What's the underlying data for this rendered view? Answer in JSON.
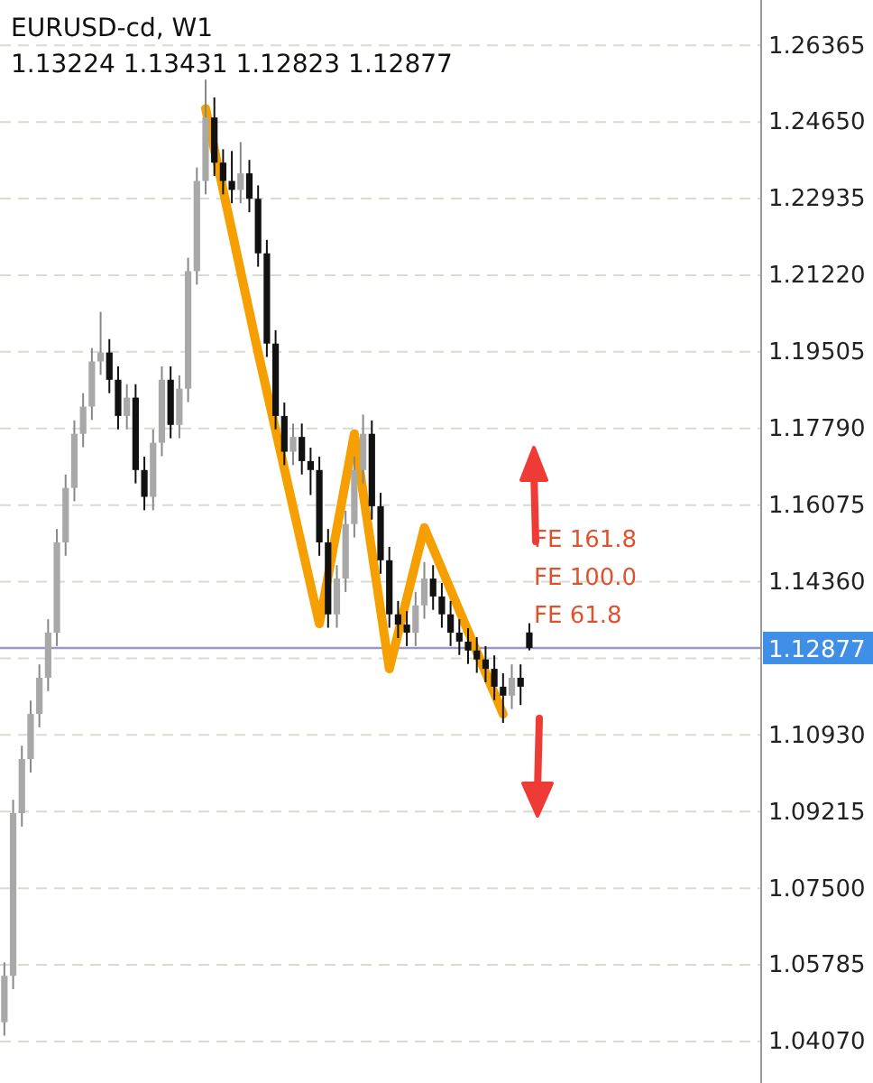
{
  "chart_data": {
    "type": "candlestick",
    "title": "EURUSD-cd, W1",
    "subtitle": "1.13224 1.13431 1.12823 1.12877",
    "categories": [
      null,
      null,
      null,
      null,
      null,
      null,
      null,
      null,
      null,
      null,
      null,
      null,
      null,
      null,
      null,
      null,
      null,
      null,
      null,
      null,
      null,
      null,
      null,
      null,
      null,
      null,
      null,
      null,
      null,
      null,
      null,
      null,
      null,
      null,
      null,
      null,
      null,
      null,
      null,
      null,
      null,
      null,
      null,
      null,
      null,
      null,
      null,
      null,
      null,
      null,
      null,
      null,
      null,
      null,
      null,
      null,
      null,
      null,
      null,
      null,
      null,
      null,
      null,
      null,
      null,
      null,
      null,
      null,
      null,
      null,
      null,
      null,
      null,
      null,
      null,
      null,
      null,
      null,
      null,
      null,
      null,
      null,
      null,
      null,
      null,
      null,
      null
    ],
    "ohlc": [
      [
        1.045,
        1.0584,
        1.042,
        1.0554
      ],
      [
        1.0554,
        1.0948,
        1.0524,
        1.0918
      ],
      [
        1.0918,
        1.1069,
        1.0888,
        1.1039
      ],
      [
        1.1039,
        1.117,
        1.1009,
        1.114
      ],
      [
        1.114,
        1.1251,
        1.111,
        1.1221
      ],
      [
        1.1221,
        1.1352,
        1.1191,
        1.1322
      ],
      [
        1.1322,
        1.1554,
        1.1292,
        1.1524
      ],
      [
        1.1524,
        1.1676,
        1.1494,
        1.1646
      ],
      [
        1.1646,
        1.1797,
        1.1616,
        1.1767
      ],
      [
        1.1767,
        1.1858,
        1.1737,
        1.1828
      ],
      [
        1.1828,
        1.1959,
        1.1798,
        1.1929
      ],
      [
        1.1929,
        1.204,
        1.1899,
        1.1949
      ],
      [
        1.1949,
        1.1979,
        1.1858,
        1.1888
      ],
      [
        1.1888,
        1.1918,
        1.1777,
        1.1807
      ],
      [
        1.1807,
        1.1878,
        1.1777,
        1.1848
      ],
      [
        1.1848,
        1.1878,
        1.1656,
        1.1686
      ],
      [
        1.1686,
        1.1716,
        1.1596,
        1.1626
      ],
      [
        1.1626,
        1.1777,
        1.1596,
        1.1747
      ],
      [
        1.1747,
        1.1918,
        1.1717,
        1.1888
      ],
      [
        1.1888,
        1.1918,
        1.1757,
        1.1787
      ],
      [
        1.1787,
        1.1898,
        1.1757,
        1.1868
      ],
      [
        1.1868,
        1.2161,
        1.1838,
        1.2131
      ],
      [
        1.2131,
        1.2363,
        1.2101,
        1.2333
      ],
      [
        1.2333,
        1.256,
        1.2303,
        1.2475
      ],
      [
        1.2475,
        1.252,
        1.2344,
        1.2374
      ],
      [
        1.2374,
        1.2404,
        1.2303,
        1.2333
      ],
      [
        1.2333,
        1.24,
        1.2283,
        1.2313
      ],
      [
        1.2313,
        1.242,
        1.2283,
        1.235
      ],
      [
        1.235,
        1.238,
        1.2263,
        1.2293
      ],
      [
        1.2293,
        1.2323,
        1.2141,
        1.2171
      ],
      [
        1.2171,
        1.2201,
        1.1939,
        1.1969
      ],
      [
        1.1969,
        1.1999,
        1.1777,
        1.1807
      ],
      [
        1.1807,
        1.1837,
        1.1697,
        1.1727
      ],
      [
        1.1727,
        1.179,
        1.1697,
        1.176
      ],
      [
        1.176,
        1.179,
        1.1676,
        1.1706
      ],
      [
        1.1706,
        1.1736,
        1.163,
        1.1686
      ],
      [
        1.1686,
        1.1716,
        1.1494,
        1.1524
      ],
      [
        1.1524,
        1.1554,
        1.1333,
        1.1363
      ],
      [
        1.1363,
        1.1473,
        1.1333,
        1.1443
      ],
      [
        1.1443,
        1.1595,
        1.1413,
        1.1565
      ],
      [
        1.1565,
        1.1716,
        1.1535,
        1.1686
      ],
      [
        1.1686,
        1.181,
        1.1656,
        1.1767
      ],
      [
        1.1767,
        1.1797,
        1.1575,
        1.1605
      ],
      [
        1.1605,
        1.1635,
        1.1454,
        1.1484
      ],
      [
        1.1484,
        1.1514,
        1.1333,
        1.1363
      ],
      [
        1.1363,
        1.1393,
        1.131,
        1.134
      ],
      [
        1.134,
        1.137,
        1.1292,
        1.1322
      ],
      [
        1.1322,
        1.1413,
        1.1292,
        1.1383
      ],
      [
        1.1383,
        1.148,
        1.1353,
        1.1443
      ],
      [
        1.1443,
        1.1473,
        1.1373,
        1.1403
      ],
      [
        1.1403,
        1.1433,
        1.1333,
        1.1363
      ],
      [
        1.1363,
        1.1393,
        1.1292,
        1.1322
      ],
      [
        1.1322,
        1.1352,
        1.1272,
        1.1302
      ],
      [
        1.1302,
        1.1332,
        1.1252,
        1.1282
      ],
      [
        1.1282,
        1.1312,
        1.1232,
        1.1262
      ],
      [
        1.1262,
        1.1292,
        1.1211,
        1.1241
      ],
      [
        1.1241,
        1.1271,
        1.1171,
        1.1201
      ],
      [
        1.1201,
        1.1231,
        1.112,
        1.1181
      ],
      [
        1.1181,
        1.1251,
        1.1151,
        1.1221
      ],
      [
        1.1221,
        1.1251,
        1.116,
        1.1201
      ],
      [
        1.13224,
        1.13431,
        1.12823,
        1.12877
      ],
      null,
      null,
      null,
      null,
      null,
      null,
      null,
      null,
      null,
      null,
      null,
      null,
      null,
      null,
      null,
      null,
      null,
      null,
      null,
      null,
      null,
      null,
      null,
      null,
      null,
      null
    ],
    "series": [
      {
        "type": "line",
        "color": "#f5a000",
        "values": [
          null,
          null,
          null,
          null,
          null,
          null,
          null,
          null,
          null,
          null,
          null,
          null,
          null,
          null,
          null,
          null,
          null,
          null,
          null,
          null,
          null,
          null,
          null,
          1.2495,
          null,
          null,
          null,
          null,
          null,
          1.1949,
          null,
          null,
          null,
          null,
          null,
          null,
          1.1342,
          null,
          null,
          null,
          1.1767,
          null,
          null,
          null,
          1.1241,
          null,
          null,
          null,
          1.1557,
          null,
          null,
          null,
          null,
          null,
          null,
          null,
          null,
          1.114,
          null,
          null,
          null,
          null,
          null,
          null,
          null,
          null,
          null,
          null,
          null,
          null,
          null,
          null,
          null,
          null,
          null,
          null,
          null,
          null,
          null,
          null,
          null,
          null,
          null,
          null,
          null,
          null,
          null
        ]
      }
    ],
    "ylim": [
      1.0314,
      1.2738
    ],
    "yticks": [
      {
        "value": 1.0407,
        "label": "1.04070"
      },
      {
        "value": 1.05785,
        "label": "1.05785"
      },
      {
        "value": 1.075,
        "label": "1.07500"
      },
      {
        "value": 1.09215,
        "label": "1.09215"
      },
      {
        "value": 1.1093,
        "label": "1.10930"
      },
      {
        "value": 1.12645,
        "label": null
      },
      {
        "value": 1.1436,
        "label": "1.14360"
      },
      {
        "value": 1.16075,
        "label": "1.16075"
      },
      {
        "value": 1.1779,
        "label": "1.17790"
      },
      {
        "value": 1.19505,
        "label": "1.19505"
      },
      {
        "value": 1.2122,
        "label": "1.21220"
      },
      {
        "value": 1.22935,
        "label": "1.22935"
      },
      {
        "value": 1.2465,
        "label": "1.24650"
      },
      {
        "value": 1.26365,
        "label": "1.26365"
      }
    ],
    "grid": "y",
    "tick_labels": "y",
    "ref_lines": [
      {
        "axis": "y",
        "value": 1.12877,
        "label": "1.12877",
        "color": "#9a98c8",
        "line_style": "solid"
      }
    ],
    "annotations": [
      "FE 161.8",
      "FE 100.0",
      "FE 61.8"
    ]
  }
}
